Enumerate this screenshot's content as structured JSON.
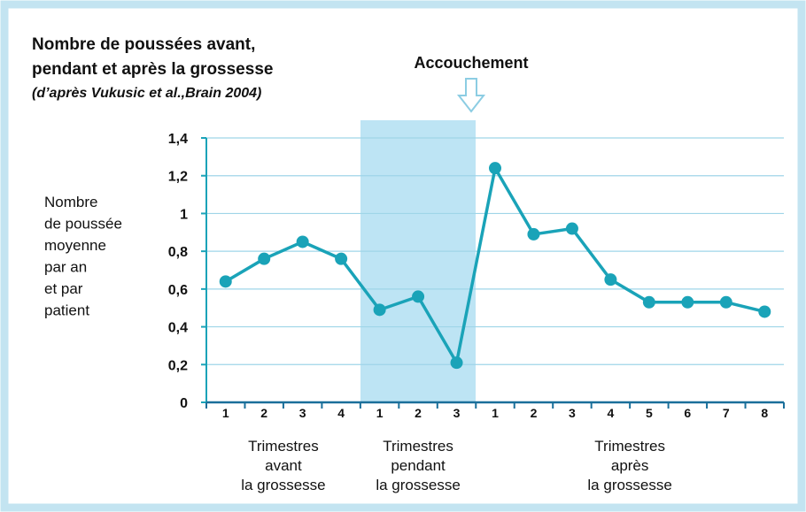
{
  "chart_data": {
    "type": "line",
    "title": [
      "Nombre de poussées avant,",
      "pendant et après la grossesse"
    ],
    "subtitle": "(d’après Vukusic et al.,Brain 2004)",
    "annotation": "Accouchement",
    "y_label": [
      "Nombre",
      "de poussée",
      "moyenne",
      "par an",
      "et par",
      "patient"
    ],
    "categories": [
      "1",
      "2",
      "3",
      "4",
      "1",
      "2",
      "3",
      "1",
      "2",
      "3",
      "4",
      "5",
      "6",
      "7",
      "8"
    ],
    "groups": [
      [
        "Trimestres",
        "avant",
        "la grossesse"
      ],
      [
        "Trimestres",
        "pendant",
        "la grossesse"
      ],
      [
        "Trimestres",
        "après",
        "la grossesse"
      ]
    ],
    "series": [
      {
        "color": "#1aa3b8",
        "values": [
          0.64,
          0.76,
          0.85,
          0.76,
          0.49,
          0.56,
          0.21,
          1.24,
          0.89,
          0.92,
          0.65,
          0.53,
          0.53,
          0.53,
          0.48
        ]
      }
    ],
    "ylim": [
      0,
      1.4
    ],
    "yticks": [
      0,
      {
        "value": 0.2,
        "label": "0,2"
      },
      {
        "value": 0.4,
        "label": "0,4"
      },
      {
        "value": 0.6,
        "label": "0,6"
      },
      {
        "value": 0.8,
        "label": "0,8"
      },
      1,
      {
        "value": 1.2,
        "label": "1,2"
      },
      {
        "value": 1.4,
        "label": "1,4"
      }
    ],
    "grid": true
  }
}
